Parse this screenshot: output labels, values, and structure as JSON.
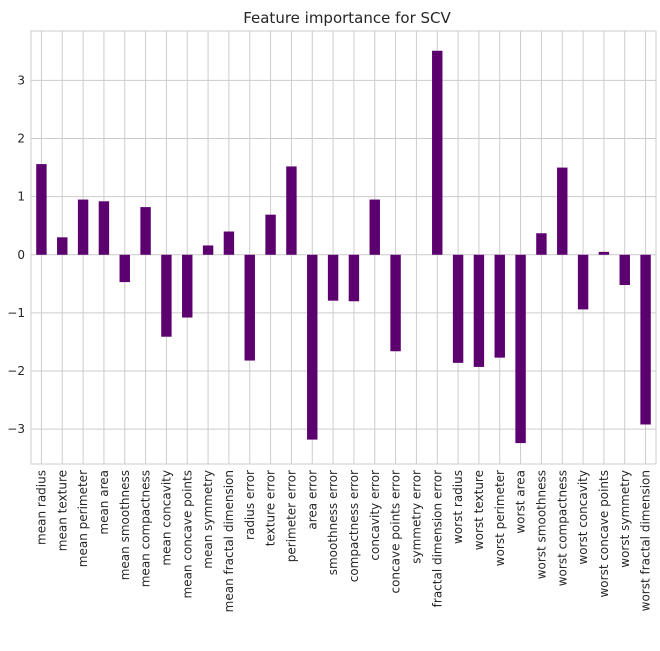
{
  "chart_data": {
    "type": "bar",
    "title": "Feature importance for SCV",
    "xlabel": "",
    "ylabel": "",
    "ylim": [
      -3.6,
      3.85
    ],
    "yticks": [
      -3,
      -2,
      -1,
      0,
      1,
      2,
      3
    ],
    "ytick_labels": [
      "−3",
      "−2",
      "−1",
      "0",
      "1",
      "2",
      "3"
    ],
    "grid": true,
    "bar_color": "#5c0070",
    "categories": [
      "mean radius",
      "mean texture",
      "mean perimeter",
      "mean area",
      "mean smoothness",
      "mean compactness",
      "mean concavity",
      "mean concave points",
      "mean symmetry",
      "mean fractal dimension",
      "radius error",
      "texture error",
      "perimeter error",
      "area error",
      "smoothness error",
      "compactness error",
      "concavity error",
      "concave points error",
      "symmetry error",
      "fractal dimension error",
      "worst radius",
      "worst texture",
      "worst perimeter",
      "worst area",
      "worst smoothness",
      "worst compactness",
      "worst concavity",
      "worst concave points",
      "worst symmetry",
      "worst fractal dimension"
    ],
    "values": [
      1.56,
      0.3,
      0.95,
      0.92,
      -0.47,
      0.82,
      -1.41,
      -1.08,
      0.16,
      0.4,
      -1.82,
      0.69,
      1.52,
      -3.18,
      -0.79,
      -0.8,
      0.95,
      -1.66,
      0.0,
      3.51,
      -1.86,
      -1.93,
      -1.77,
      -3.24,
      0.37,
      1.5,
      -0.94,
      0.05,
      -0.52,
      -2.92
    ]
  }
}
